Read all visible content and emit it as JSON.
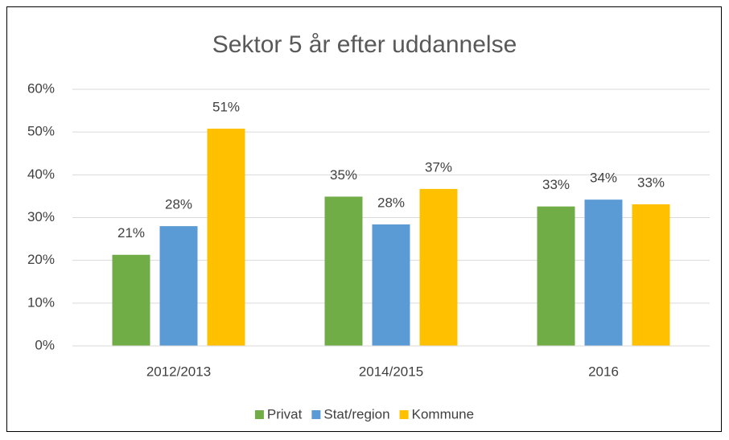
{
  "chart_data": {
    "type": "bar",
    "title": "Sektor 5 år efter uddannelse",
    "categories": [
      "2012/2013",
      "2014/2015",
      "2016"
    ],
    "series": [
      {
        "name": "Privat",
        "color": "#70ad47",
        "values": [
          21.3,
          34.9,
          32.6
        ],
        "value_labels": [
          "21%",
          "35%",
          "33%"
        ]
      },
      {
        "name": "Stat/region",
        "color": "#5b9bd5",
        "values": [
          28.0,
          28.4,
          34.2
        ],
        "value_labels": [
          "28%",
          "28%",
          "34%"
        ]
      },
      {
        "name": "Kommune",
        "color": "#ffc000",
        "values": [
          50.8,
          36.7,
          33.1
        ],
        "value_labels": [
          "51%",
          "37%",
          "33%"
        ]
      }
    ],
    "ylim": [
      0,
      60
    ],
    "yticks": [
      {
        "value": 0,
        "label": "0%"
      },
      {
        "value": 10,
        "label": "10%"
      },
      {
        "value": 20,
        "label": "20%"
      },
      {
        "value": 30,
        "label": "30%"
      },
      {
        "value": 40,
        "label": "40%"
      },
      {
        "value": 50,
        "label": "50%"
      },
      {
        "value": 60,
        "label": "60%"
      }
    ],
    "grid": true,
    "legend": "bottom"
  }
}
